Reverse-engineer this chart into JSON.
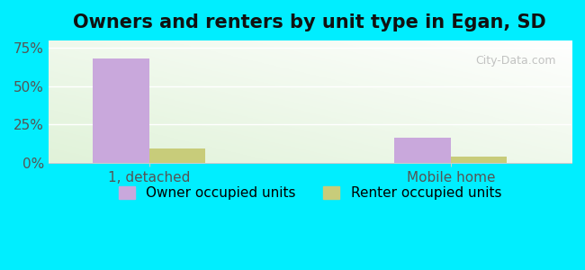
{
  "title": "Owners and renters by unit type in Egan, SD",
  "categories": [
    "1, detached",
    "Mobile home"
  ],
  "owner_values": [
    68.0,
    16.0
  ],
  "renter_values": [
    9.0,
    4.0
  ],
  "owner_color": "#c9a8dc",
  "renter_color": "#c8cc7a",
  "bar_width": 0.28,
  "ylim": [
    0,
    80
  ],
  "xlim": [
    0,
    2.6
  ],
  "yticks": [
    0,
    25,
    50,
    75
  ],
  "ytick_labels": [
    "0%",
    "25%",
    "50%",
    "75%"
  ],
  "group_positions": [
    0.5,
    2.0
  ],
  "legend_owner": "Owner occupied units",
  "legend_renter": "Renter occupied units",
  "title_fontsize": 15,
  "tick_fontsize": 11,
  "legend_fontsize": 11,
  "bg_outer": "#00eeff",
  "watermark": "City-Data.com"
}
